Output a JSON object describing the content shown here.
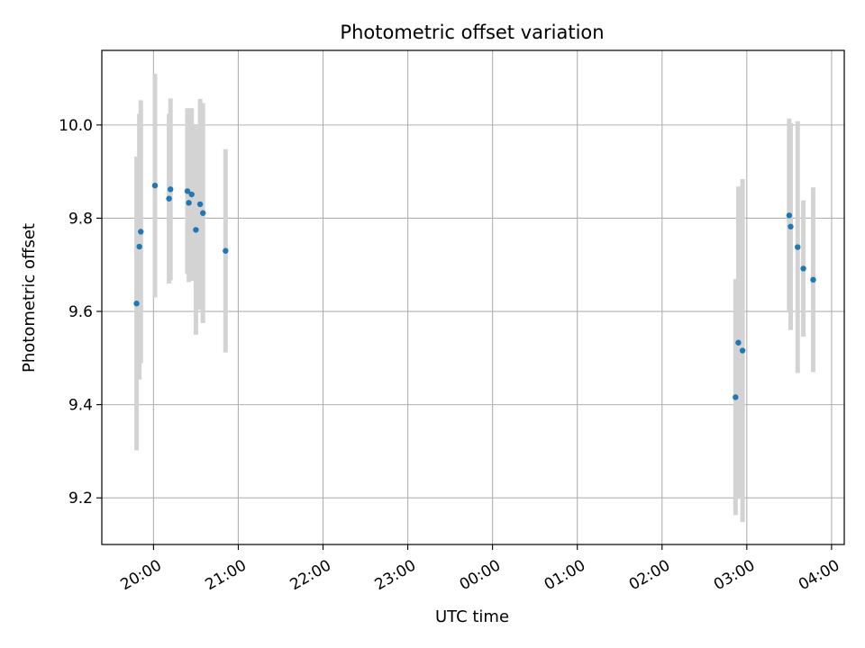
{
  "chart_data": {
    "type": "scatter",
    "title": "Photometric offset variation",
    "xlabel": "UTC time",
    "ylabel": "Photometric offset",
    "x_ticks": [
      "20:00",
      "21:00",
      "22:00",
      "23:00",
      "00:00",
      "01:00",
      "02:00",
      "03:00",
      "04:00"
    ],
    "x_tick_hours": [
      20,
      21,
      22,
      23,
      24,
      25,
      26,
      27,
      28
    ],
    "xlim_hours": [
      19.39,
      28.15
    ],
    "ylim": [
      9.1,
      10.16
    ],
    "y_ticks": [
      9.2,
      9.4,
      9.6,
      9.8,
      10.0
    ],
    "y_tick_labels": [
      "9.2",
      "9.4",
      "9.6",
      "9.8",
      "10.0"
    ],
    "grid": true,
    "colors": {
      "marker": "#1f77b4",
      "errorbar": "#d3d3d3",
      "grid": "#b0b0b0"
    },
    "series": [
      {
        "x_time": [
          "19:48",
          "19:50",
          "19:51",
          "20:01",
          "20:11",
          "20:12",
          "20:24",
          "20:25",
          "20:27",
          "20:30",
          "20:33",
          "20:35",
          "20:51",
          "02:52",
          "02:54",
          "02:57",
          "03:30",
          "03:31",
          "03:36",
          "03:40",
          "03:47"
        ],
        "x_hours": [
          19.8,
          19.833,
          19.85,
          20.017,
          20.183,
          20.2,
          20.4,
          20.417,
          20.45,
          20.5,
          20.55,
          20.583,
          20.85,
          26.867,
          26.9,
          26.95,
          27.5,
          27.517,
          27.6,
          27.667,
          27.783
        ],
        "y": [
          9.617,
          9.739,
          9.771,
          9.87,
          9.842,
          9.862,
          9.858,
          9.833,
          9.851,
          9.775,
          9.83,
          9.811,
          9.73,
          9.416,
          9.533,
          9.516,
          9.806,
          9.782,
          9.738,
          9.692,
          9.668
        ],
        "yerr": [
          0.315,
          0.285,
          0.282,
          0.24,
          0.182,
          0.195,
          0.178,
          0.17,
          0.185,
          0.225,
          0.226,
          0.236,
          0.218,
          0.253,
          0.335,
          0.368,
          0.208,
          0.222,
          0.27,
          0.146,
          0.198
        ]
      }
    ]
  }
}
